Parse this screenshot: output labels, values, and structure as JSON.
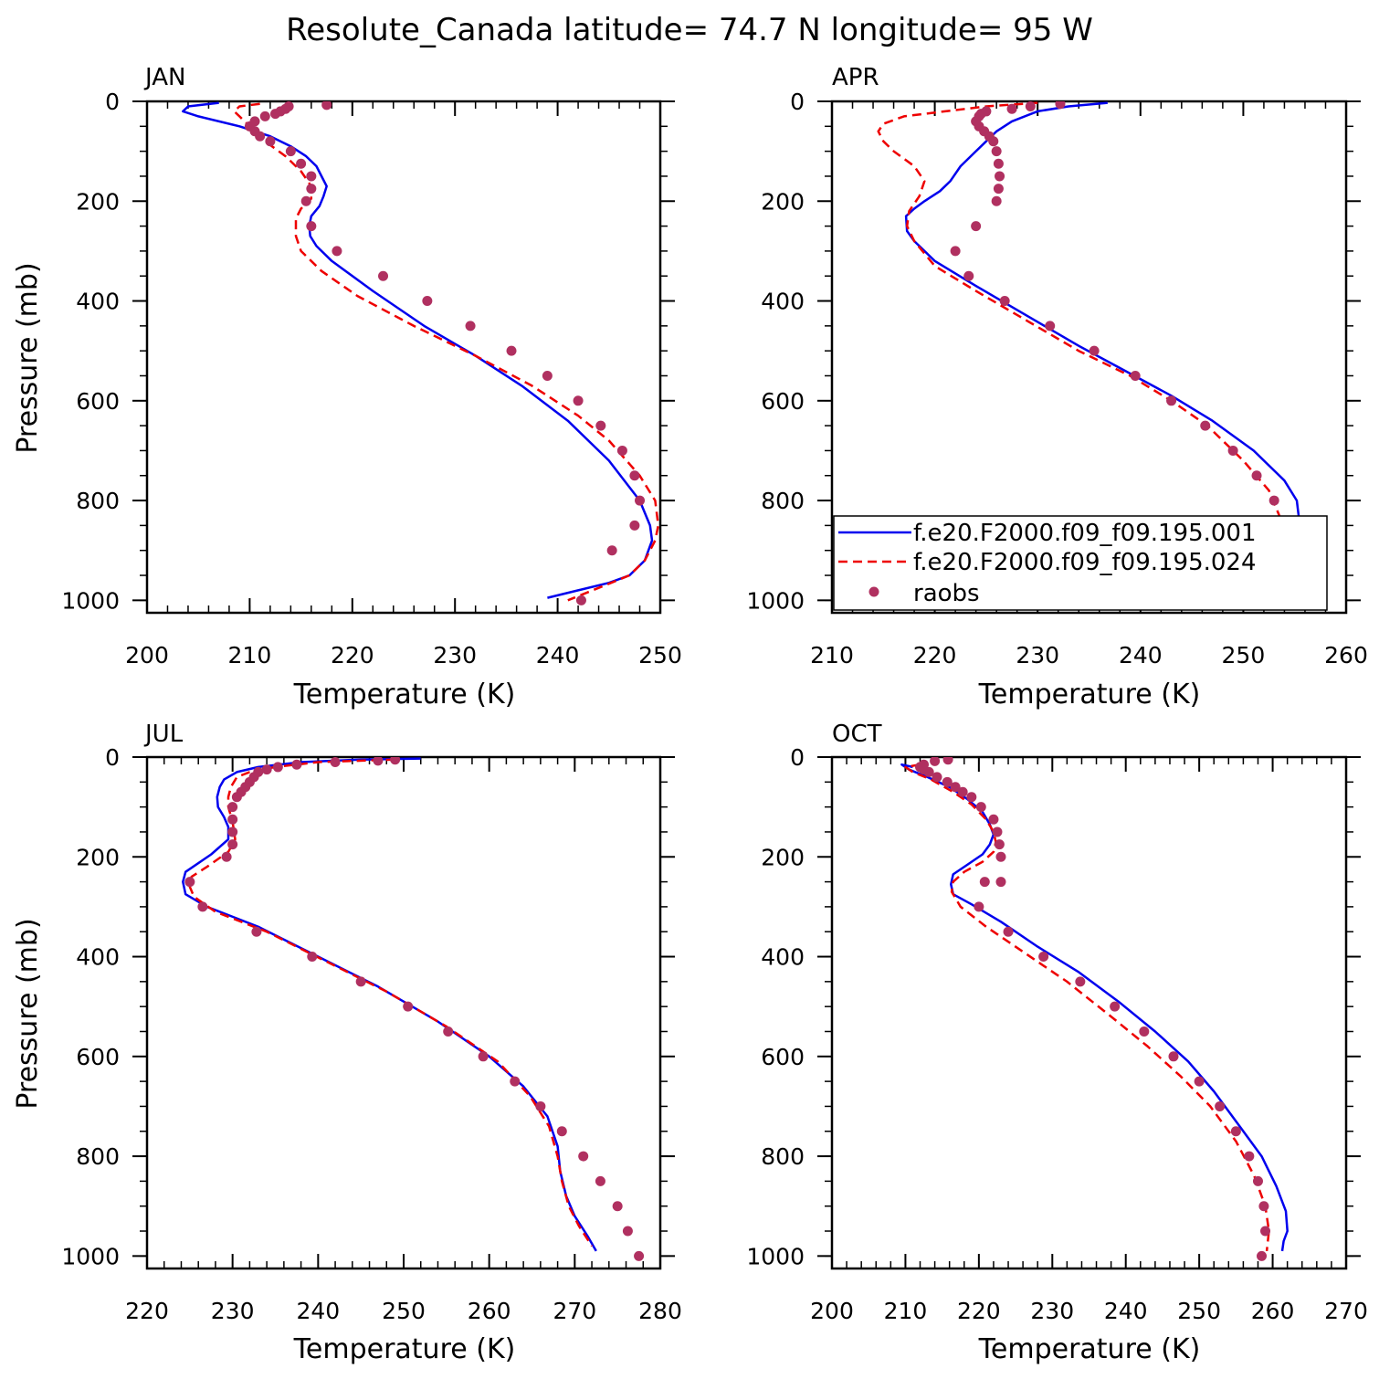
{
  "title": "Resolute_Canada  latitude= 74.7 N longitude= 95 W",
  "colors": {
    "model1": "#0000ee",
    "model2": "#ee0000",
    "obs": "#b03060"
  },
  "chart_data": [
    {
      "type": "line",
      "panel": "JAN",
      "xlabel": "Temperature (K)",
      "ylabel": "Pressure (mb)",
      "xlim": [
        200,
        250
      ],
      "ylim": [
        1025,
        0
      ],
      "xticks": [
        200,
        210,
        220,
        230,
        240,
        250
      ],
      "yticks": [
        0,
        200,
        400,
        600,
        800,
        1000
      ],
      "series": [
        {
          "name": "f.e20.F2000.f09_f09.195.001",
          "style": "solid",
          "color": "#0000ee",
          "x": [
            207,
            204,
            203.5,
            205,
            209,
            212,
            214,
            215.5,
            216.5,
            217,
            217.5,
            217.2,
            216.8,
            216,
            215.8,
            215.9,
            216.5,
            218,
            222,
            227,
            232,
            236.5,
            241,
            245,
            248,
            249,
            249.2,
            248.5,
            247,
            245,
            242,
            239
          ],
          "y": [
            3,
            10,
            20,
            30,
            50,
            70,
            90,
            110,
            130,
            150,
            170,
            190,
            210,
            230,
            250,
            270,
            290,
            320,
            380,
            450,
            510,
            570,
            640,
            720,
            800,
            850,
            880,
            920,
            950,
            965,
            980,
            995
          ]
        },
        {
          "name": "f.e20.F2000.f09_f09.195.024",
          "style": "dashed",
          "color": "#ee0000",
          "x": [
            211,
            209,
            208.5,
            209,
            210,
            211.5,
            213.5,
            215,
            216,
            216,
            215,
            214.5,
            214.5,
            215,
            217,
            220.5,
            226,
            232,
            237.5,
            242,
            245,
            248,
            249.5,
            249.8,
            249.5,
            248.5,
            247,
            244,
            241
          ],
          "y": [
            5,
            10,
            20,
            30,
            50,
            80,
            110,
            140,
            170,
            195,
            215,
            235,
            270,
            300,
            340,
            390,
            450,
            510,
            570,
            630,
            680,
            750,
            800,
            850,
            880,
            920,
            950,
            975,
            1000
          ]
        },
        {
          "name": "raobs",
          "style": "dots",
          "color": "#b03060",
          "x": [
            217.5,
            213.8,
            213.5,
            213,
            212.5,
            211.5,
            210.5,
            210,
            210.5,
            211,
            212,
            214,
            215,
            216,
            216,
            215.5,
            216,
            218.5,
            223,
            227.3,
            231.5,
            235.5,
            239,
            242,
            244.2,
            246.3,
            247.5,
            248,
            247.5,
            245.3,
            242.3
          ],
          "y": [
            7,
            10,
            15,
            20,
            25,
            30,
            40,
            50,
            60,
            70,
            80,
            100,
            125,
            150,
            175,
            200,
            250,
            300,
            350,
            400,
            450,
            500,
            550,
            600,
            650,
            700,
            750,
            800,
            850,
            900,
            1000
          ]
        }
      ]
    },
    {
      "type": "line",
      "panel": "APR",
      "xlabel": "Temperature (K)",
      "ylabel": "",
      "xlim": [
        210,
        260
      ],
      "ylim": [
        1025,
        0
      ],
      "xticks": [
        210,
        220,
        230,
        240,
        250,
        260
      ],
      "yticks": [
        0,
        200,
        400,
        600,
        800,
        1000
      ],
      "legend": {
        "position": "bottom-right"
      },
      "series": [
        {
          "name": "f.e20.F2000.f09_f09.195.001",
          "style": "solid",
          "color": "#0000ee",
          "x": [
            236.8,
            233,
            230,
            227.5,
            226,
            225,
            224,
            222.5,
            221.5,
            220.5,
            219,
            218,
            217.2,
            217.3,
            218,
            220,
            224,
            229,
            234,
            238.5,
            243,
            247,
            251,
            254,
            255.2,
            255.5,
            255,
            254,
            253,
            252,
            251.6
          ],
          "y": [
            3,
            10,
            20,
            40,
            60,
            80,
            100,
            130,
            160,
            180,
            200,
            215,
            230,
            260,
            280,
            320,
            370,
            430,
            490,
            540,
            590,
            640,
            700,
            760,
            800,
            850,
            890,
            920,
            950,
            970,
            990
          ]
        },
        {
          "name": "f.e20.F2000.f09_f09.195.024",
          "style": "dashed",
          "color": "#ee0000",
          "x": [
            230,
            225,
            221,
            217,
            215,
            214.5,
            215,
            216,
            218,
            219,
            218.5,
            217.5,
            217.3,
            218,
            220,
            224,
            229,
            234,
            239,
            243,
            246.5,
            250,
            252.5,
            253.5,
            254,
            254.2,
            253.8,
            253,
            252,
            251.3
          ],
          "y": [
            3,
            10,
            20,
            30,
            45,
            60,
            80,
            100,
            130,
            160,
            190,
            220,
            250,
            280,
            330,
            380,
            440,
            500,
            550,
            600,
            650,
            720,
            780,
            830,
            870,
            900,
            930,
            950,
            970,
            985
          ]
        },
        {
          "name": "raobs",
          "style": "dots",
          "color": "#b03060",
          "x": [
            232.2,
            229.3,
            227.5,
            225,
            224.5,
            224.3,
            224,
            224.3,
            224.8,
            225.3,
            225.7,
            226,
            226.2,
            226.3,
            226.2,
            226,
            224,
            222,
            223.3,
            226.8,
            231.2,
            235.5,
            239.5,
            243,
            246.3,
            249,
            251.3,
            253,
            253.8,
            254,
            253.5,
            252.7,
            251
          ],
          "y": [
            5,
            10,
            15,
            20,
            25,
            30,
            40,
            50,
            60,
            70,
            80,
            100,
            125,
            150,
            175,
            200,
            250,
            300,
            350,
            400,
            450,
            500,
            550,
            600,
            650,
            700,
            750,
            800,
            850,
            900,
            925,
            950,
            1000
          ]
        }
      ]
    },
    {
      "type": "line",
      "panel": "JUL",
      "xlabel": "Temperature (K)",
      "ylabel": "Pressure (mb)",
      "xlim": [
        220,
        280
      ],
      "ylim": [
        1025,
        0
      ],
      "xticks": [
        220,
        230,
        240,
        250,
        260,
        270,
        280
      ],
      "yticks": [
        0,
        200,
        400,
        600,
        800,
        1000
      ],
      "series": [
        {
          "name": "f.e20.F2000.f09_f09.195.001",
          "style": "solid",
          "color": "#0000ee",
          "x": [
            252,
            245,
            238,
            233,
            230.5,
            229,
            228.5,
            228.2,
            228.3,
            229,
            229.5,
            229.5,
            227.5,
            224.5,
            224.2,
            224.5,
            227,
            233,
            240,
            247,
            254,
            260,
            264,
            266.8,
            268,
            268.3,
            269,
            270,
            271.5,
            272.5
          ],
          "y": [
            3,
            5,
            10,
            20,
            30,
            45,
            60,
            80,
            100,
            120,
            140,
            165,
            195,
            230,
            250,
            275,
            300,
            340,
            400,
            460,
            530,
            600,
            660,
            720,
            780,
            830,
            880,
            920,
            960,
            990
          ]
        },
        {
          "name": "f.e20.F2000.f09_f09.195.024",
          "style": "dashed",
          "color": "#ee0000",
          "x": [
            249,
            240,
            235,
            232,
            230.5,
            229.8,
            229.5,
            229.5,
            230,
            230.3,
            229.5,
            227,
            225.2,
            225,
            225.5,
            228,
            234,
            241,
            248,
            255,
            261,
            264.8,
            267,
            268,
            268.5,
            269.3,
            270.5,
            272
          ],
          "y": [
            5,
            10,
            20,
            30,
            40,
            60,
            80,
            100,
            130,
            165,
            190,
            220,
            240,
            260,
            280,
            310,
            350,
            410,
            470,
            540,
            610,
            680,
            740,
            800,
            850,
            900,
            940,
            980
          ]
        },
        {
          "name": "raobs",
          "style": "dots",
          "color": "#b03060",
          "x": [
            249,
            247,
            242,
            237.5,
            235.3,
            234,
            233,
            232.5,
            232,
            231.5,
            231,
            230.5,
            230,
            230,
            230,
            230,
            229.3,
            225,
            226.5,
            232.8,
            239.3,
            245,
            250.5,
            255.2,
            259.3,
            263,
            266,
            268.5,
            271,
            273,
            275,
            276.2,
            277.5
          ],
          "y": [
            5,
            7,
            10,
            15,
            20,
            25,
            30,
            40,
            50,
            60,
            70,
            80,
            100,
            125,
            150,
            175,
            200,
            250,
            300,
            350,
            400,
            450,
            500,
            550,
            600,
            650,
            700,
            750,
            800,
            850,
            900,
            950,
            1000
          ]
        }
      ]
    },
    {
      "type": "line",
      "panel": "OCT",
      "xlabel": "Temperature (K)",
      "ylabel": "",
      "xlim": [
        200,
        270
      ],
      "ylim": [
        1025,
        0
      ],
      "xticks": [
        200,
        210,
        220,
        230,
        240,
        250,
        260,
        270
      ],
      "yticks": [
        0,
        200,
        400,
        600,
        800,
        1000
      ],
      "series": [
        {
          "name": "f.e20.F2000.f09_f09.195.001",
          "style": "solid",
          "color": "#0000ee",
          "x": [
            211,
            209.5,
            210.5,
            213,
            216,
            218.5,
            220.5,
            221.5,
            222,
            221.5,
            220.5,
            218.5,
            216.5,
            216.2,
            216.5,
            219,
            223,
            228,
            233.5,
            239,
            244,
            248.5,
            252,
            255.5,
            258.5,
            260.5,
            261.8,
            262,
            261.5,
            261.3
          ],
          "y": [
            20,
            15,
            25,
            40,
            60,
            85,
            110,
            135,
            155,
            175,
            195,
            215,
            235,
            255,
            275,
            295,
            330,
            380,
            430,
            490,
            550,
            610,
            670,
            740,
            800,
            860,
            910,
            950,
            970,
            990
          ]
        },
        {
          "name": "f.e20.F2000.f09_f09.195.024",
          "style": "dashed",
          "color": "#ee0000",
          "x": [
            212,
            210,
            211,
            213.5,
            216.5,
            219,
            221,
            222,
            222.3,
            222,
            220.5,
            218,
            216.5,
            216.3,
            217.5,
            221,
            226,
            232,
            238,
            243,
            247.5,
            251.5,
            255,
            257.5,
            259,
            259.5,
            259.2
          ],
          "y": [
            15,
            20,
            30,
            45,
            70,
            95,
            125,
            150,
            170,
            190,
            210,
            230,
            250,
            270,
            300,
            340,
            390,
            450,
            520,
            580,
            640,
            700,
            770,
            840,
            900,
            950,
            990
          ]
        },
        {
          "name": "raobs",
          "style": "dots",
          "color": "#b03060",
          "x": [
            215.8,
            214,
            212.5,
            212,
            212.5,
            213.2,
            214.3,
            215.7,
            216.8,
            217.8,
            219,
            220.3,
            222,
            222.5,
            222.8,
            223,
            223,
            220.8,
            220,
            224,
            228.8,
            233.8,
            238.5,
            242.5,
            246.5,
            250,
            252.8,
            255,
            256.8,
            258,
            258.8,
            259,
            258.5
          ],
          "y": [
            5,
            8,
            15,
            20,
            25,
            30,
            40,
            50,
            60,
            70,
            80,
            100,
            125,
            150,
            175,
            200,
            250,
            250,
            300,
            350,
            400,
            450,
            500,
            550,
            600,
            650,
            700,
            750,
            800,
            850,
            900,
            950,
            1000
          ]
        }
      ]
    }
  ]
}
